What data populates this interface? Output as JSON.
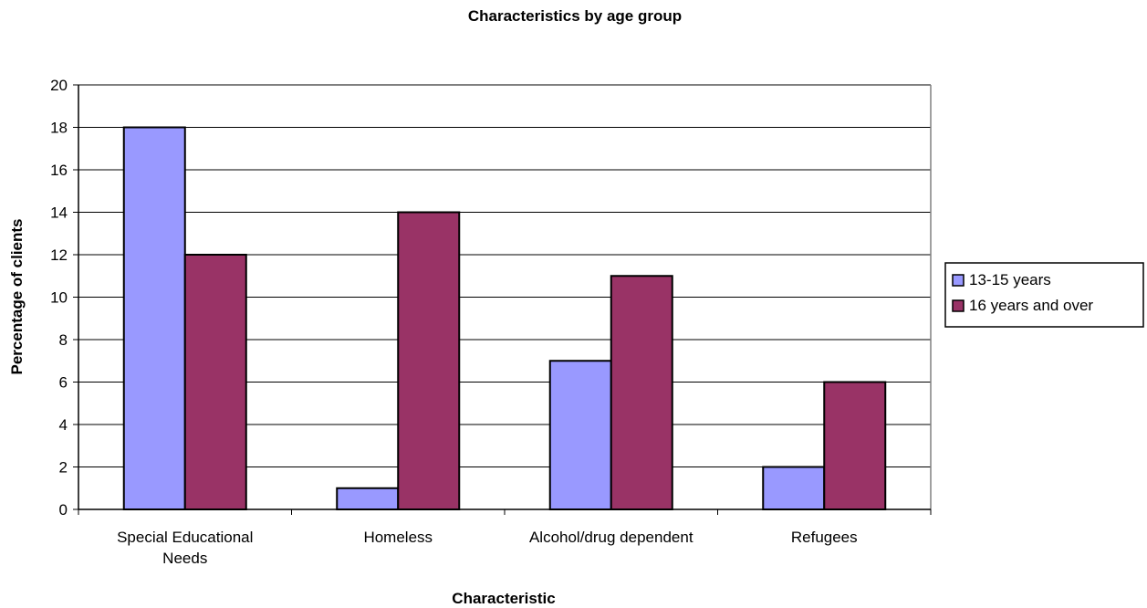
{
  "chart_data": {
    "type": "bar",
    "title": "Characteristics by age group",
    "xlabel": "Characteristic",
    "ylabel": "Percentage of clients",
    "categories": [
      [
        "Special Educational",
        "Needs"
      ],
      [
        "Homeless"
      ],
      [
        "Alcohol/drug dependent"
      ],
      [
        "Refugees"
      ]
    ],
    "series": [
      {
        "name": "13-15 years",
        "color": "#9999ff",
        "values": [
          18,
          1,
          7,
          2
        ]
      },
      {
        "name": "16 years and over",
        "color": "#993366",
        "values": [
          12,
          14,
          11,
          6
        ]
      }
    ],
    "ylim": [
      0,
      20
    ],
    "yticks": [
      0,
      2,
      4,
      6,
      8,
      10,
      12,
      14,
      16,
      18,
      20
    ],
    "grid": true,
    "legend_position": "right"
  }
}
